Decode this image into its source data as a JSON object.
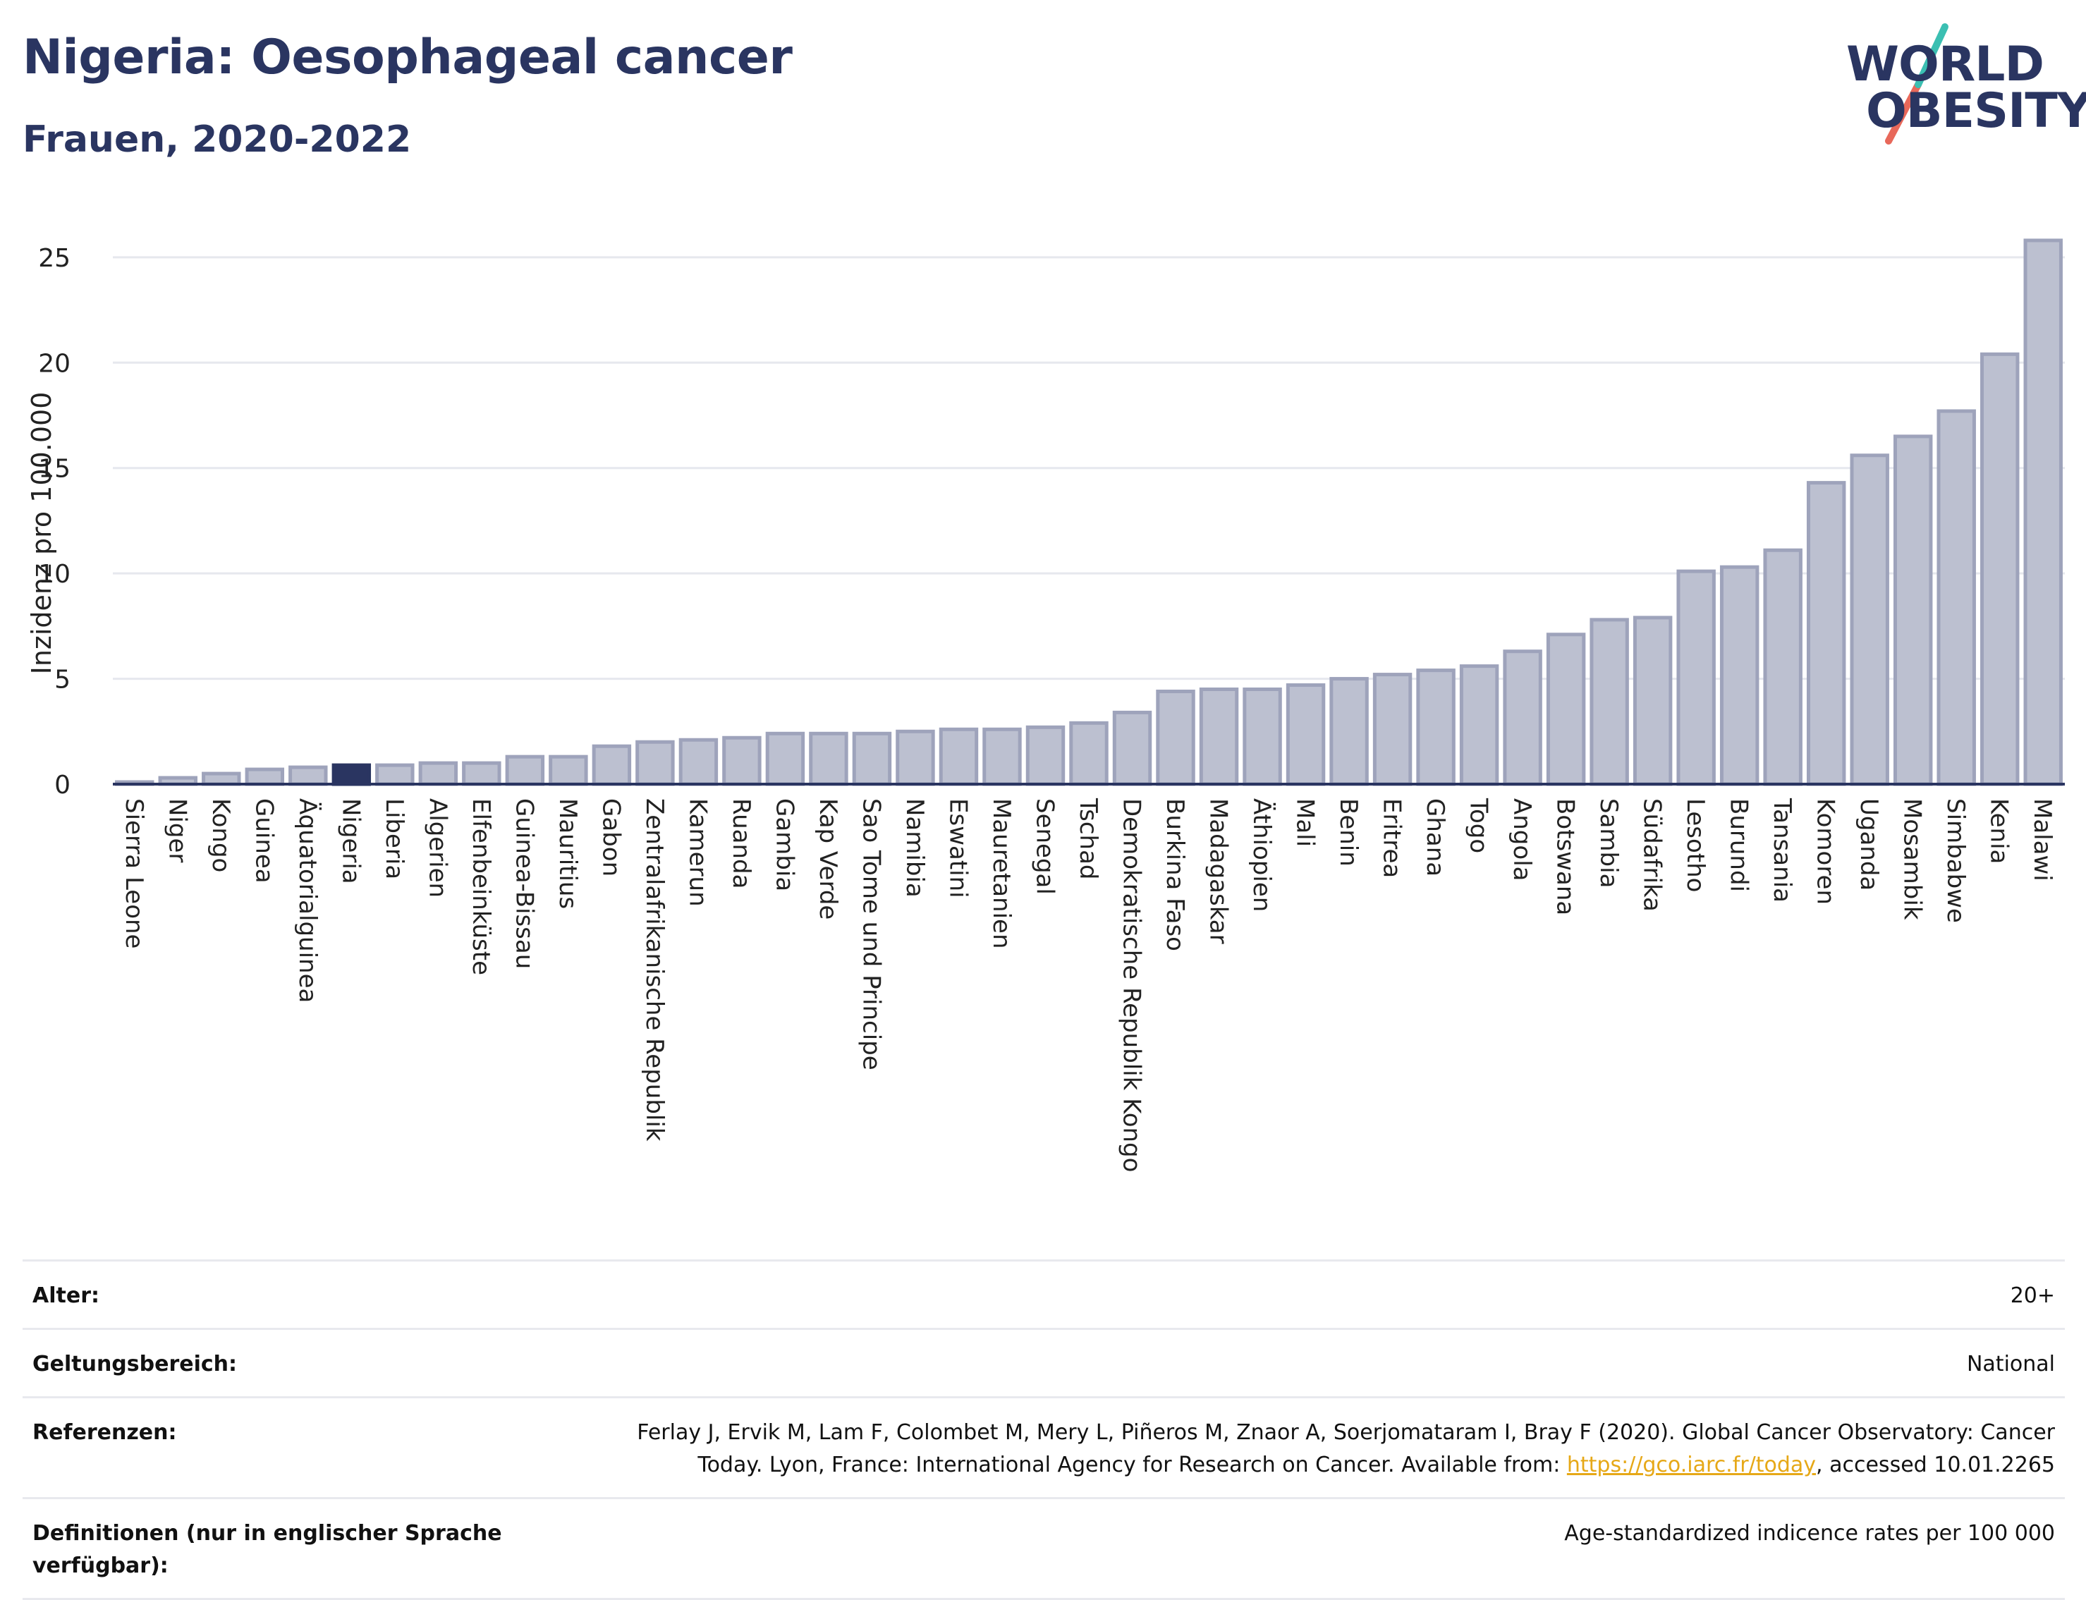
{
  "header": {
    "title": "Nigeria: Oesophageal cancer",
    "subtitle": "Frauen, 2020-2022"
  },
  "logo": {
    "line1": "WORLD",
    "line2": "OBESITY",
    "accent_teal": "#3bbfb2",
    "accent_coral": "#e8685a"
  },
  "chart_data": {
    "type": "bar",
    "ylabel": "Inzidenz pro 100.000",
    "ylim": [
      0,
      26.5
    ],
    "yticks": [
      0,
      5,
      10,
      15,
      20,
      25
    ],
    "grid": true,
    "highlight": "Nigeria",
    "colors": {
      "bar_fill": "#bcc0d0",
      "bar_stroke": "#9ea3bb",
      "highlight_fill": "#2a3561",
      "axis": "#2a3561",
      "grid": "#e6e8ee"
    },
    "categories": [
      "Sierra Leone",
      "Niger",
      "Kongo",
      "Guinea",
      "Äquatorialguinea",
      "Nigeria",
      "Liberia",
      "Algerien",
      "Elfenbeinküste",
      "Guinea-Bissau",
      "Mauritius",
      "Gabon",
      "Zentralafrikanische Republik",
      "Kamerun",
      "Ruanda",
      "Gambia",
      "Kap Verde",
      "Sao Tome und Principe",
      "Namibia",
      "Eswatini",
      "Mauretanien",
      "Senegal",
      "Tschad",
      "Demokratische Republik Kongo",
      "Burkina Faso",
      "Madagaskar",
      "Äthiopien",
      "Mali",
      "Benin",
      "Eritrea",
      "Ghana",
      "Togo",
      "Angola",
      "Botswana",
      "Sambia",
      "Südafrika",
      "Lesotho",
      "Burundi",
      "Tansania",
      "Komoren",
      "Uganda",
      "Mosambik",
      "Simbabwe",
      "Kenia",
      "Malawi"
    ],
    "values": [
      0.1,
      0.3,
      0.5,
      0.7,
      0.8,
      0.9,
      0.9,
      1.0,
      1.0,
      1.3,
      1.3,
      1.8,
      2.0,
      2.1,
      2.2,
      2.4,
      2.4,
      2.4,
      2.5,
      2.6,
      2.6,
      2.7,
      2.9,
      3.4,
      4.4,
      4.5,
      4.5,
      4.7,
      5.0,
      5.2,
      5.4,
      5.6,
      6.3,
      7.1,
      7.8,
      7.9,
      10.1,
      10.3,
      11.1,
      14.3,
      15.6,
      16.5,
      17.7,
      20.4,
      25.8
    ]
  },
  "meta": [
    {
      "label": "Alter:",
      "value": "20+"
    },
    {
      "label": "Geltungsbereich:",
      "value": "National"
    },
    {
      "label": "Referenzen:",
      "value_line1": "Ferlay J, Ervik M, Lam F, Colombet M, Mery L, Piñeros M, Znaor A, Soerjomataram I, Bray F (2020). Global Cancer Observatory: Cancer",
      "value_line2_pre": "Today. Lyon, France: International Agency for Research on Cancer. Available from: ",
      "link": "https://gco.iarc.fr/today",
      "value_line2_post": ", accessed 10.01.2265"
    },
    {
      "label": "Definitionen (nur in englischer Sprache verfügbar):",
      "value": "Age-standardized indicence rates per 100 000"
    }
  ]
}
